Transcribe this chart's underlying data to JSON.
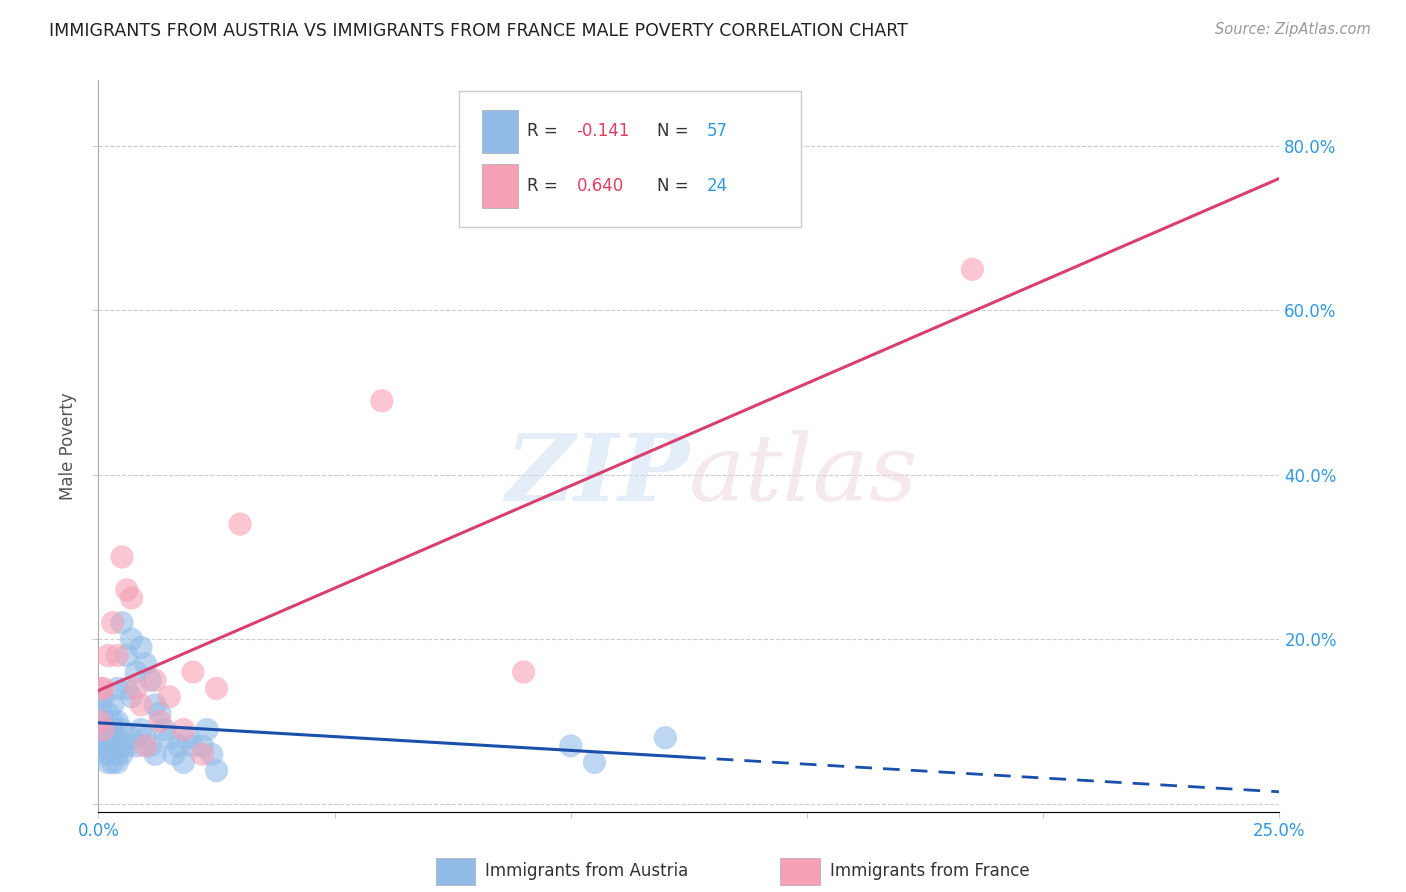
{
  "title": "IMMIGRANTS FROM AUSTRIA VS IMMIGRANTS FROM FRANCE MALE POVERTY CORRELATION CHART",
  "source": "Source: ZipAtlas.com",
  "ylabel": "Male Poverty",
  "y_ticks": [
    0.0,
    0.2,
    0.4,
    0.6,
    0.8
  ],
  "y_tick_labels": [
    "",
    "20.0%",
    "40.0%",
    "60.0%",
    "80.0%"
  ],
  "xlim": [
    0.0,
    0.25
  ],
  "ylim": [
    -0.01,
    0.88
  ],
  "austria_color": "#92bce8",
  "france_color": "#f5a0b5",
  "austria_line_color": "#1a4faa",
  "france_line_color": "#d94070",
  "austria_R": -0.141,
  "austria_N": 57,
  "france_R": 0.64,
  "france_N": 24,
  "legend_label_austria": "Immigrants from Austria",
  "legend_label_france": "Immigrants from France",
  "austria_x": [
    0.0005,
    0.001,
    0.001,
    0.001,
    0.0015,
    0.0015,
    0.002,
    0.002,
    0.002,
    0.002,
    0.0025,
    0.003,
    0.003,
    0.003,
    0.003,
    0.003,
    0.003,
    0.004,
    0.004,
    0.004,
    0.004,
    0.004,
    0.005,
    0.005,
    0.005,
    0.005,
    0.006,
    0.006,
    0.006,
    0.007,
    0.007,
    0.007,
    0.008,
    0.008,
    0.009,
    0.009,
    0.01,
    0.01,
    0.011,
    0.011,
    0.012,
    0.012,
    0.013,
    0.014,
    0.015,
    0.016,
    0.017,
    0.018,
    0.019,
    0.02,
    0.022,
    0.023,
    0.024,
    0.025,
    0.1,
    0.105,
    0.12
  ],
  "austria_y": [
    0.12,
    0.07,
    0.08,
    0.13,
    0.06,
    0.09,
    0.05,
    0.07,
    0.09,
    0.11,
    0.06,
    0.05,
    0.07,
    0.08,
    0.09,
    0.1,
    0.12,
    0.05,
    0.06,
    0.08,
    0.1,
    0.14,
    0.06,
    0.07,
    0.09,
    0.22,
    0.07,
    0.14,
    0.18,
    0.08,
    0.13,
    0.2,
    0.07,
    0.16,
    0.09,
    0.19,
    0.08,
    0.17,
    0.07,
    0.15,
    0.06,
    0.12,
    0.11,
    0.09,
    0.08,
    0.06,
    0.07,
    0.05,
    0.08,
    0.07,
    0.07,
    0.09,
    0.06,
    0.04,
    0.07,
    0.05,
    0.08
  ],
  "france_x": [
    0.0003,
    0.0005,
    0.001,
    0.001,
    0.002,
    0.003,
    0.004,
    0.005,
    0.006,
    0.007,
    0.008,
    0.009,
    0.01,
    0.012,
    0.013,
    0.015,
    0.018,
    0.02,
    0.022,
    0.025,
    0.03,
    0.06,
    0.09,
    0.185
  ],
  "france_y": [
    0.1,
    0.14,
    0.09,
    0.14,
    0.18,
    0.22,
    0.18,
    0.3,
    0.26,
    0.25,
    0.14,
    0.12,
    0.07,
    0.15,
    0.1,
    0.13,
    0.09,
    0.16,
    0.06,
    0.14,
    0.34,
    0.49,
    0.16,
    0.65
  ],
  "austria_line_x_start": 0.0,
  "austria_line_x_solid_end": 0.125,
  "austria_line_x_end": 0.25,
  "france_line_x_start": 0.0,
  "france_line_x_end": 0.25
}
